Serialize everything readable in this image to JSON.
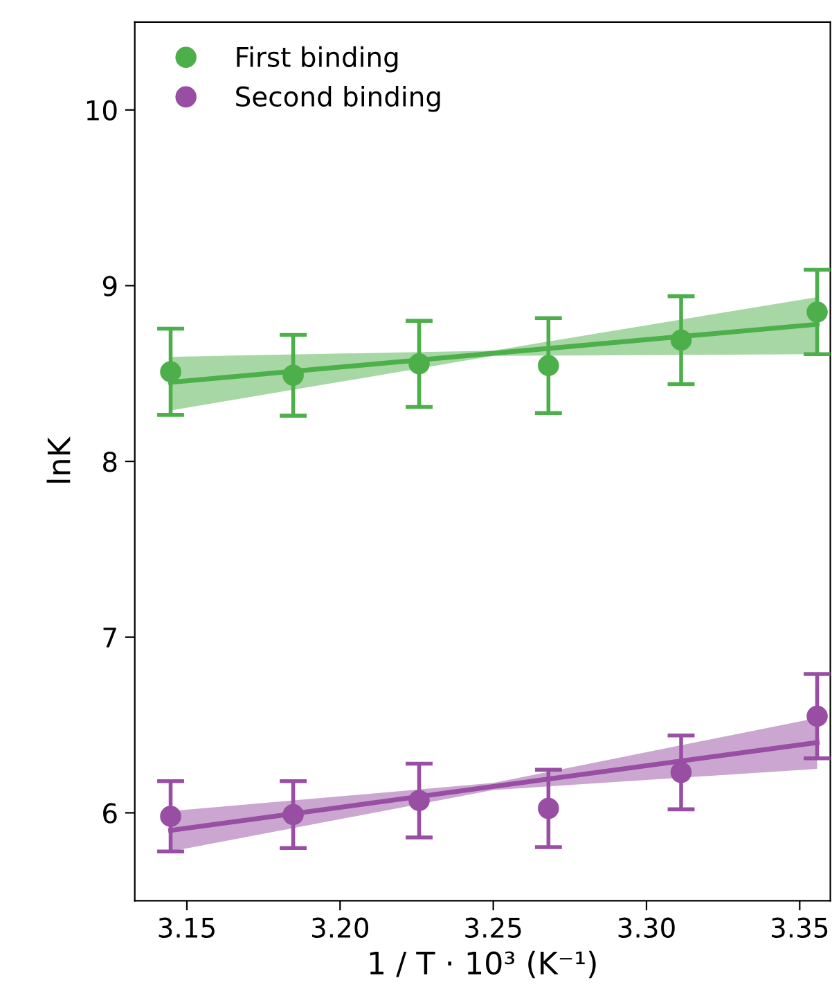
{
  "chart_data": {
    "type": "scatter",
    "xlabel": "1 / T · 10³ (K⁻¹)",
    "ylabel": "lnK",
    "xlim": [
      3.133,
      3.36
    ],
    "xticks": [
      3.15,
      {
        "value": 3.2,
        "label": "3.20"
      },
      3.25,
      {
        "value": 3.3,
        "label": "3.30"
      },
      3.35
    ],
    "ylim": [
      5.5,
      10.5
    ],
    "yticks": [
      6,
      7,
      8,
      9,
      10
    ],
    "grid": false,
    "legend": "top left",
    "marker": "circle",
    "series": [
      {
        "name": "First binding",
        "color": "#4daf4a",
        "x": [
          3.1447,
          3.1847,
          3.2258,
          3.268,
          3.3113,
          3.3557
        ],
        "values": [
          8.51,
          8.49,
          8.555,
          8.545,
          8.69,
          8.85
        ],
        "errors": [
          0.245,
          0.23,
          0.245,
          0.27,
          0.25,
          0.24
        ]
      },
      {
        "type": "line",
        "color": "#4daf4a",
        "marker": "none",
        "x": [
          3.1447,
          3.25,
          3.3557
        ],
        "values": [
          8.45,
          8.615,
          8.78
        ],
        "lower": [
          8.29,
          8.6,
          8.61
        ],
        "upper": [
          8.595,
          8.63,
          8.935
        ]
      },
      {
        "name": "Second binding",
        "color": "#984ea3",
        "x": [
          3.1447,
          3.1847,
          3.2258,
          3.268,
          3.3113,
          3.3557
        ],
        "values": [
          5.98,
          5.99,
          6.07,
          6.025,
          6.23,
          6.55
        ],
        "errors": [
          0.2,
          0.19,
          0.21,
          0.22,
          0.21,
          0.24
        ]
      },
      {
        "type": "line",
        "color": "#984ea3",
        "marker": "none",
        "x": [
          3.1447,
          3.25,
          3.3557
        ],
        "values": [
          5.9,
          6.15,
          6.4
        ],
        "lower": [
          5.78,
          6.13,
          6.25
        ],
        "upper": [
          6.01,
          6.17,
          6.54
        ]
      }
    ]
  }
}
